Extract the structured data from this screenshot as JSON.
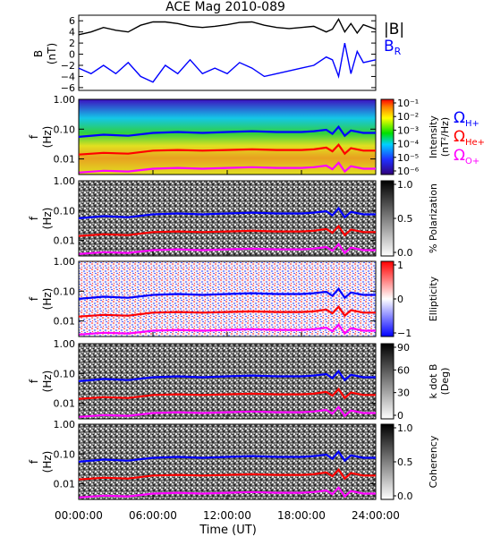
{
  "title": "ACE Mag 2010-089",
  "x_axis": {
    "label": "Time (UT)",
    "ticks": [
      "00:00:00",
      "06:00:00",
      "12:00:00",
      "18:00:00",
      "24:00:00"
    ],
    "range_hours": [
      0,
      24
    ]
  },
  "colors": {
    "b_total": "#000000",
    "b_radial": "#0000ff",
    "h_plus": "#0000ff",
    "he_plus": "#ff0000",
    "o_plus": "#ff00ff"
  },
  "legend_b": {
    "total": "|B|",
    "radial": "B",
    "radial_sub": "R"
  },
  "legend_gyro": [
    {
      "symbol": "Ω",
      "sub": "H+",
      "color": "#0000ff"
    },
    {
      "symbol": "Ω",
      "sub": "He+",
      "color": "#ff0000"
    },
    {
      "symbol": "Ω",
      "sub": "O+",
      "color": "#ff00ff"
    }
  ],
  "freq_ticks": [
    "1.00",
    "0.10",
    "0.01"
  ],
  "freq_ylabel": [
    "f",
    "(Hz)"
  ],
  "chart_data": [
    {
      "type": "line",
      "title": "ACE Mag 2010-089",
      "ylabel": "B",
      "yunit": "(nT)",
      "yticks": [
        "6",
        "4",
        "2",
        "0",
        "−2",
        "−4",
        "−6"
      ],
      "ylim": [
        -6.5,
        7
      ],
      "x_unit": "hours UT",
      "series": [
        {
          "name": "|B|",
          "x": [
            0,
            1,
            2,
            3,
            4,
            5,
            6,
            7,
            8,
            9,
            10,
            11,
            12,
            13,
            14,
            15,
            16,
            17,
            18,
            19,
            20,
            20.5,
            21,
            21.5,
            22,
            22.5,
            23,
            24
          ],
          "values": [
            3.5,
            4.0,
            4.8,
            4.3,
            4.0,
            5.2,
            5.8,
            5.8,
            5.5,
            5.0,
            4.8,
            5.0,
            5.3,
            5.7,
            5.8,
            5.2,
            4.8,
            4.6,
            4.8,
            5.0,
            4.0,
            4.5,
            6.3,
            4.0,
            5.5,
            3.8,
            5.3,
            4.5
          ]
        },
        {
          "name": "B_R",
          "x": [
            0,
            1,
            2,
            3,
            4,
            5,
            6,
            7,
            8,
            9,
            10,
            11,
            12,
            13,
            14,
            15,
            16,
            17,
            18,
            19,
            20,
            20.5,
            21,
            21.5,
            22,
            22.5,
            23,
            24
          ],
          "values": [
            -2.5,
            -3.5,
            -2.0,
            -3.5,
            -1.5,
            -4.0,
            -5.0,
            -2.0,
            -3.5,
            -1.0,
            -3.5,
            -2.5,
            -3.5,
            -1.5,
            -2.5,
            -4.0,
            -3.5,
            -3.0,
            -2.5,
            -2.0,
            -0.5,
            -1.0,
            -4.0,
            2.0,
            -3.5,
            0.5,
            -1.5,
            -1.0
          ]
        }
      ]
    },
    {
      "type": "heatmap",
      "ylabel": "f (Hz)",
      "ylim_hz": [
        0.003,
        1.0
      ],
      "yscale": "log",
      "colorbar": {
        "label": "Intensity",
        "unit": "(nT²/Hz)",
        "ticks": [
          "10⁻¹",
          "10⁻²",
          "10⁻³",
          "10⁻⁴",
          "10⁻⁵",
          "10⁻⁶"
        ],
        "scale": "rainbow"
      }
    },
    {
      "type": "heatmap",
      "ylabel": "f (Hz)",
      "ylim_hz": [
        0.003,
        1.0
      ],
      "yscale": "log",
      "colorbar": {
        "label": "% Polarization",
        "ticks": [
          "1.0",
          "0.5",
          "0.0"
        ],
        "scale": "grayscale"
      }
    },
    {
      "type": "heatmap",
      "ylabel": "f (Hz)",
      "ylim_hz": [
        0.003,
        1.0
      ],
      "yscale": "log",
      "colorbar": {
        "label": "Ellipticity",
        "ticks": [
          "1",
          "0",
          "−1"
        ],
        "scale": "blue-white-red"
      }
    },
    {
      "type": "heatmap",
      "ylabel": "f (Hz)",
      "ylim_hz": [
        0.003,
        1.0
      ],
      "yscale": "log",
      "colorbar": {
        "label": "k dot B",
        "unit": "(Deg)",
        "ticks": [
          "90",
          "60",
          "30",
          "0"
        ],
        "scale": "grayscale"
      }
    },
    {
      "type": "heatmap",
      "ylabel": "f (Hz)",
      "ylim_hz": [
        0.003,
        1.0
      ],
      "yscale": "log",
      "colorbar": {
        "label": "Coherency",
        "ticks": [
          "1.0",
          "0.5",
          "0.0"
        ],
        "scale": "grayscale"
      }
    }
  ],
  "gyrofrequency_lines": {
    "x": [
      0,
      2,
      4,
      6,
      8,
      10,
      12,
      14,
      16,
      18,
      19,
      20,
      20.5,
      21,
      21.5,
      22,
      23,
      24
    ],
    "h_plus_hz": [
      0.055,
      0.065,
      0.06,
      0.075,
      0.08,
      0.075,
      0.08,
      0.085,
      0.08,
      0.08,
      0.085,
      0.095,
      0.07,
      0.12,
      0.06,
      0.09,
      0.075,
      0.075
    ],
    "he_plus_hz": [
      0.014,
      0.016,
      0.015,
      0.019,
      0.02,
      0.019,
      0.02,
      0.021,
      0.02,
      0.02,
      0.021,
      0.024,
      0.018,
      0.03,
      0.015,
      0.023,
      0.019,
      0.019
    ],
    "o_plus_hz": [
      0.0035,
      0.004,
      0.0038,
      0.0047,
      0.005,
      0.0047,
      0.005,
      0.0053,
      0.005,
      0.005,
      0.0053,
      0.006,
      0.0045,
      0.0075,
      0.0038,
      0.0057,
      0.0047,
      0.0047
    ]
  }
}
